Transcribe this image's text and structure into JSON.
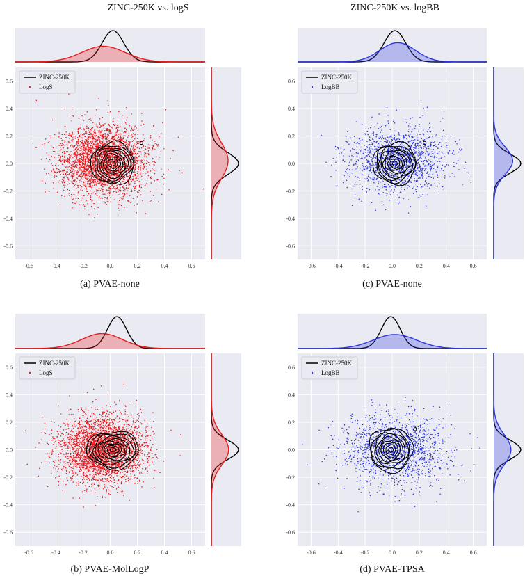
{
  "column_titles": [
    "ZINC-250K vs. logS",
    "ZINC-250K vs. logBB"
  ],
  "chart_data": [
    {
      "type": "scatter",
      "panel": "a",
      "caption": "(a) PVAE-none",
      "xlim": [
        -0.7,
        0.7
      ],
      "ylim": [
        -0.7,
        0.7
      ],
      "xticks": [
        -0.6,
        -0.4,
        -0.2,
        0.0,
        0.2,
        0.4,
        0.6
      ],
      "yticks": [
        -0.6,
        -0.4,
        -0.2,
        0.0,
        0.2,
        0.4,
        0.6
      ],
      "grid": true,
      "legend_position": "top-left",
      "series": [
        {
          "name": "ZINC-250K",
          "kind": "kde-contour",
          "color": "#000000",
          "center": [
            0.02,
            0.0
          ],
          "spread": [
            0.1,
            0.095
          ],
          "levels": 9,
          "outlier_ring": [
            0.23,
            0.15
          ]
        },
        {
          "name": "LogS",
          "kind": "points",
          "color": "#e8191b",
          "n_points": 3200,
          "seed": 11,
          "center": [
            -0.05,
            0.02
          ],
          "spread": [
            0.16,
            0.13
          ]
        }
      ],
      "marginal_x": [
        {
          "name": "ZINC-250K",
          "color": "#000000",
          "mean": 0.02,
          "sd": 0.08,
          "fill": false
        },
        {
          "name": "LogS",
          "color": "#e8191b",
          "mean": -0.05,
          "sd": 0.16,
          "fill": true
        }
      ],
      "marginal_y": [
        {
          "name": "ZINC-250K",
          "color": "#000000",
          "mean": 0.0,
          "sd": 0.08,
          "fill": false
        },
        {
          "name": "LogS",
          "color": "#e8191b",
          "mean": 0.02,
          "sd": 0.13,
          "fill": true
        }
      ]
    },
    {
      "type": "scatter",
      "panel": "c",
      "caption": "(c) PVAE-none",
      "xlim": [
        -0.7,
        0.7
      ],
      "ylim": [
        -0.7,
        0.7
      ],
      "xticks": [
        -0.6,
        -0.4,
        -0.2,
        0.0,
        0.2,
        0.4,
        0.6
      ],
      "yticks": [
        -0.6,
        -0.4,
        -0.2,
        0.0,
        0.2,
        0.4,
        0.6
      ],
      "grid": true,
      "legend_position": "top-left",
      "series": [
        {
          "name": "ZINC-250K",
          "kind": "kde-contour",
          "color": "#000000",
          "center": [
            0.02,
            0.0
          ],
          "spread": [
            0.1,
            0.095
          ],
          "levels": 9,
          "outlier_ring": [
            0.24,
            0.15
          ]
        },
        {
          "name": "LogBB",
          "kind": "points",
          "color": "#2a35e0",
          "n_points": 1500,
          "seed": 23,
          "center": [
            0.04,
            0.02
          ],
          "spread": [
            0.18,
            0.12
          ]
        }
      ],
      "marginal_x": [
        {
          "name": "ZINC-250K",
          "color": "#000000",
          "mean": 0.02,
          "sd": 0.08,
          "fill": false
        },
        {
          "name": "LogBB",
          "color": "#2a35e0",
          "mean": 0.04,
          "sd": 0.13,
          "fill": true
        }
      ],
      "marginal_y": [
        {
          "name": "ZINC-250K",
          "color": "#000000",
          "mean": 0.0,
          "sd": 0.07,
          "fill": false
        },
        {
          "name": "LogBB",
          "color": "#2a35e0",
          "mean": 0.02,
          "sd": 0.1,
          "fill": true
        }
      ]
    },
    {
      "type": "scatter",
      "panel": "b",
      "caption": "(b) PVAE-MolLogP",
      "xlim": [
        -0.7,
        0.7
      ],
      "ylim": [
        -0.7,
        0.7
      ],
      "xticks": [
        -0.6,
        -0.4,
        -0.2,
        0.0,
        0.2,
        0.4,
        0.6
      ],
      "yticks": [
        -0.6,
        -0.4,
        -0.2,
        0.0,
        0.2,
        0.4,
        0.6
      ],
      "grid": true,
      "legend_position": "top-left",
      "series": [
        {
          "name": "ZINC-250K",
          "kind": "kde-contour",
          "color": "#000000",
          "center": [
            0.02,
            0.0
          ],
          "spread": [
            0.12,
            0.085
          ],
          "levels": 9,
          "outlier_ring": null
        },
        {
          "name": "LogS",
          "kind": "points",
          "color": "#e8191b",
          "n_points": 3400,
          "seed": 37,
          "center": [
            -0.06,
            0.0
          ],
          "spread": [
            0.15,
            0.12
          ]
        }
      ],
      "marginal_x": [
        {
          "name": "ZINC-250K",
          "color": "#000000",
          "mean": 0.05,
          "sd": 0.07,
          "fill": false
        },
        {
          "name": "LogS",
          "color": "#e8191b",
          "mean": -0.06,
          "sd": 0.15,
          "fill": true
        }
      ],
      "marginal_y": [
        {
          "name": "ZINC-250K",
          "color": "#000000",
          "mean": 0.0,
          "sd": 0.07,
          "fill": false
        },
        {
          "name": "LogS",
          "color": "#e8191b",
          "mean": 0.0,
          "sd": 0.11,
          "fill": true
        }
      ]
    },
    {
      "type": "scatter",
      "panel": "d",
      "caption": "(d) PVAE-TPSA",
      "xlim": [
        -0.7,
        0.7
      ],
      "ylim": [
        -0.7,
        0.7
      ],
      "xticks": [
        -0.6,
        -0.4,
        -0.2,
        0.0,
        0.2,
        0.4,
        0.6
      ],
      "yticks": [
        -0.6,
        -0.4,
        -0.2,
        0.0,
        0.2,
        0.4,
        0.6
      ],
      "grid": true,
      "legend_position": "top-left",
      "series": [
        {
          "name": "ZINC-250K",
          "kind": "kde-contour",
          "color": "#000000",
          "center": [
            -0.01,
            0.0
          ],
          "spread": [
            0.1,
            0.1
          ],
          "levels": 9,
          "outlier_ring": [
            0.17,
            0.15
          ]
        },
        {
          "name": "LogBB",
          "kind": "points",
          "color": "#2a35e0",
          "n_points": 1500,
          "seed": 53,
          "center": [
            0.03,
            0.0
          ],
          "spread": [
            0.2,
            0.13
          ]
        }
      ],
      "marginal_x": [
        {
          "name": "ZINC-250K",
          "color": "#000000",
          "mean": -0.01,
          "sd": 0.07,
          "fill": false
        },
        {
          "name": "LogBB",
          "color": "#2a35e0",
          "mean": 0.02,
          "sd": 0.16,
          "fill": true
        }
      ],
      "marginal_y": [
        {
          "name": "ZINC-250K",
          "color": "#000000",
          "mean": 0.0,
          "sd": 0.07,
          "fill": false
        },
        {
          "name": "LogBB",
          "color": "#2a35e0",
          "mean": 0.0,
          "sd": 0.11,
          "fill": true
        }
      ]
    }
  ]
}
